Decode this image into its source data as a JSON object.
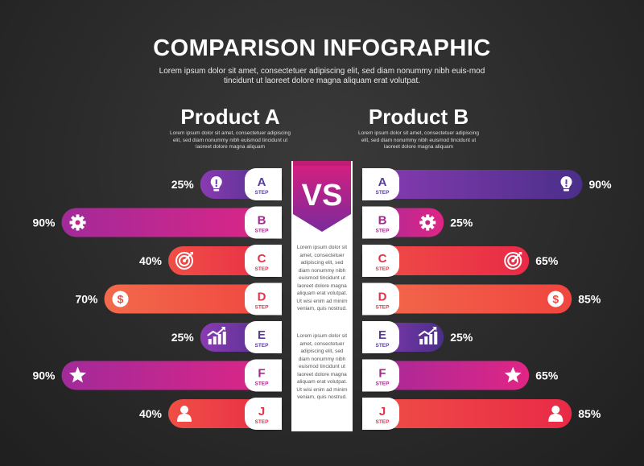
{
  "header": {
    "title": "COMPARISON INFOGRAPHIC",
    "subtitle": "Lorem ipsum dolor sit amet, consectetuer adipiscing elit, sed diam nonummy nibh euis-mod tincidunt ut laoreet dolore magna aliquam erat volutpat."
  },
  "product_a": {
    "title": "Product A",
    "description": "Lorem ipsum dolor sit amet, consectetuer adipiscing elit, sed diam nonummy nibh euismod tincidunt ut laoreet dolore magna aliquam"
  },
  "product_b": {
    "title": "Product B",
    "description": "Lorem ipsum dolor sit amet, consectetuer adipiscing elit, sed diam nonummy nibh euismod tincidunt ut laoreet dolore magna aliquam"
  },
  "center": {
    "vs_label": "VS",
    "text_1": "Lorem ipsum dolor sit amet, consectetuer adipiscing elit, sed diam nonummy nibh euismod tincidunt ut laoreet dolore magna aliquam erat volutpat. Ut wisi enim ad minim veniam, quis nostrud.",
    "text_2": "Lorem ipsum dolor sit amet, consectetuer adipiscing elit, sed diam nonummy nibh euismod tincidunt ut laoreet dolore magna aliquam erat volutpat. Ut wisi enim ad minim veniam, quis nostrud."
  },
  "colors": {
    "purple": "#6b3aa8",
    "magenta": "#d91e7a",
    "red": "#e8344a",
    "orange_red": "#ef4a42"
  },
  "chart_data": {
    "type": "bar",
    "title": "COMPARISON INFOGRAPHIC",
    "categories": [
      "A",
      "B",
      "C",
      "D",
      "E",
      "F",
      "J"
    ],
    "step_label": "STEP",
    "series": [
      {
        "name": "Product A",
        "values": [
          25,
          90,
          40,
          70,
          25,
          90,
          40
        ]
      },
      {
        "name": "Product B",
        "values": [
          90,
          25,
          65,
          85,
          25,
          65,
          85
        ]
      }
    ],
    "value_suffix": "%",
    "xlim": [
      0,
      100
    ],
    "icons": [
      "lightbulb-icon",
      "gear-icon",
      "target-icon",
      "dollar-icon",
      "growth-chart-icon",
      "star-icon",
      "user-icon"
    ],
    "row_colors": [
      "purple",
      "magenta",
      "red",
      "orange_red",
      "purple",
      "magenta",
      "red"
    ]
  }
}
